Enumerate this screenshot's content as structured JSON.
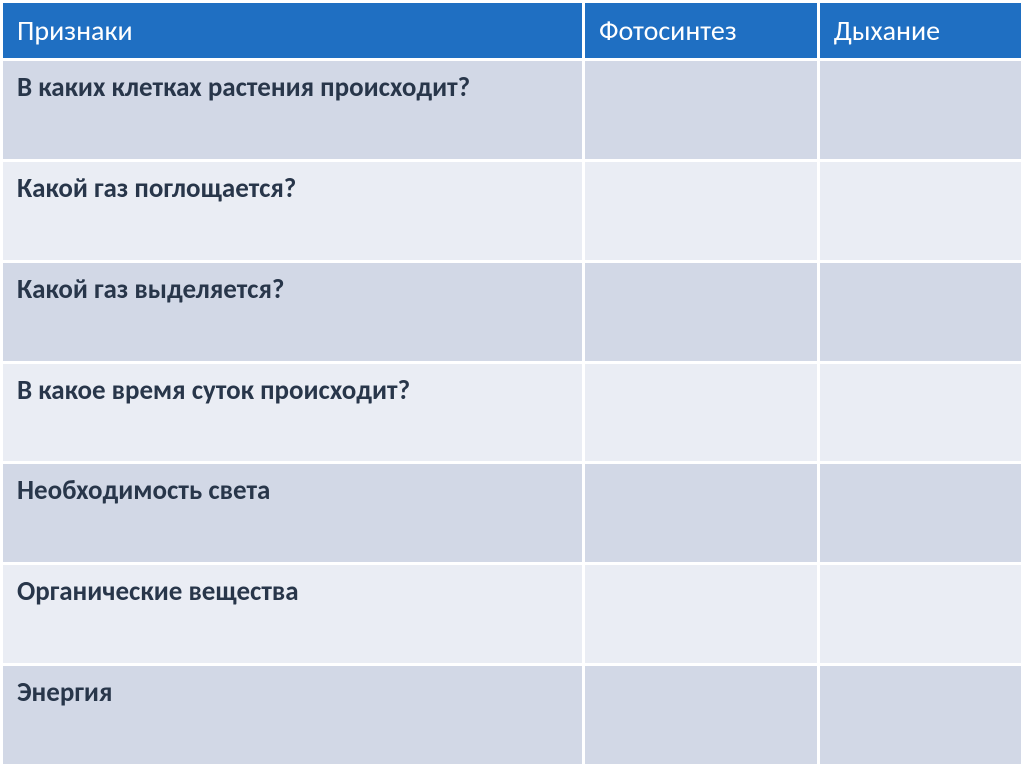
{
  "table": {
    "type": "table",
    "header_bg": "#1f6fc2",
    "header_fg": "#ffffff",
    "row_odd_bg": "#d2d8e6",
    "row_even_bg": "#eaedf4",
    "body_fg": "#28364a",
    "border_color": "#ffffff",
    "header_fontsize": 28,
    "body_fontsize": 27,
    "column_widths_pct": [
      57,
      23,
      20
    ],
    "columns": [
      "Признаки",
      "Фотосинтез",
      "Дыхание"
    ],
    "rows": [
      [
        "В каких клетках растения происходит?",
        "",
        ""
      ],
      [
        "Какой газ поглощается?",
        "",
        ""
      ],
      [
        "Какой газ выделяется?",
        "",
        ""
      ],
      [
        "В какое время суток происходит?",
        "",
        ""
      ],
      [
        "Необходимость света",
        "",
        ""
      ],
      [
        "Органические вещества",
        "",
        ""
      ],
      [
        "Энергия",
        "",
        ""
      ]
    ]
  }
}
